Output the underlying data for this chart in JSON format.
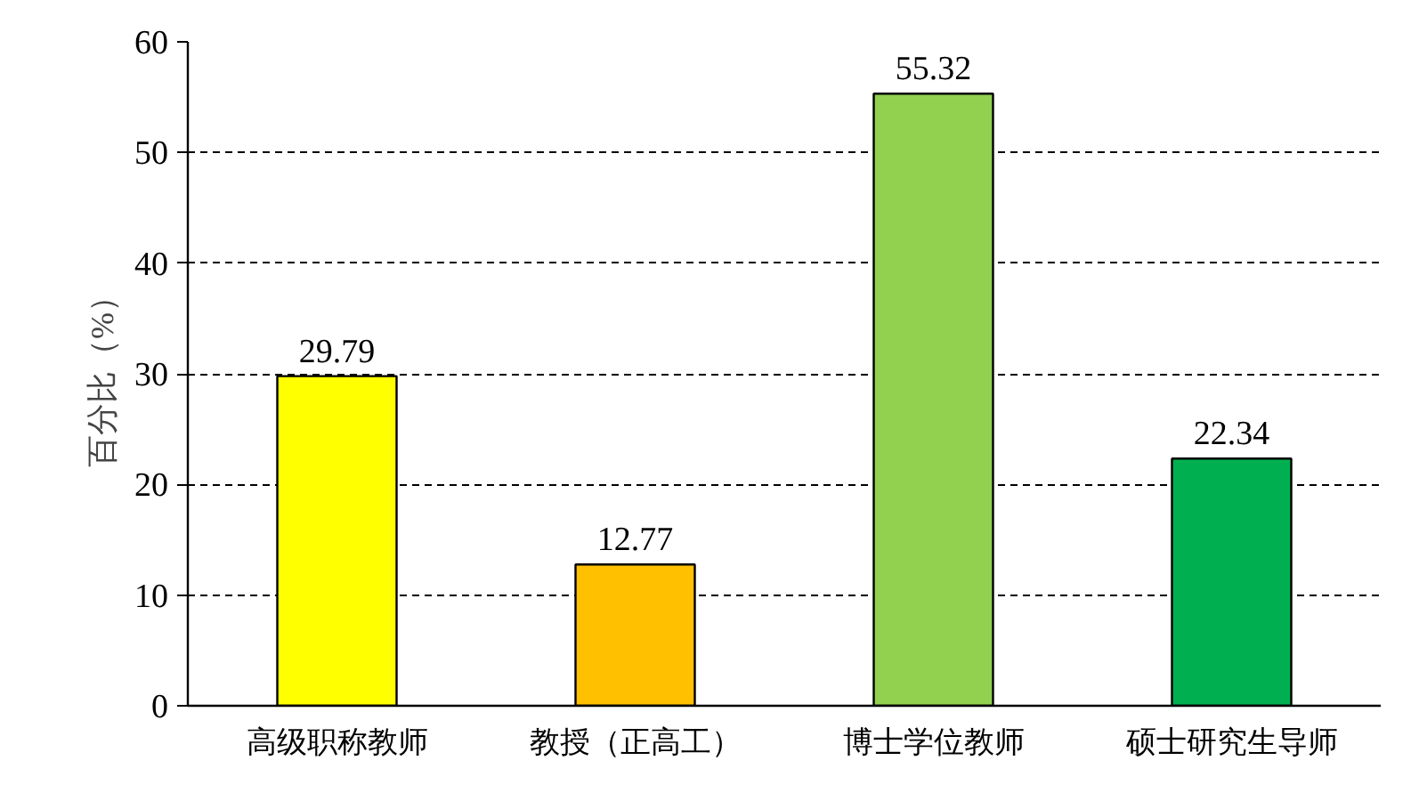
{
  "chart_data": {
    "type": "bar",
    "ylabel": "百分比（%）",
    "categories": [
      "高级职称教师",
      "教授（正高工）",
      "博士学位教师",
      "硕士研究生导师"
    ],
    "values": [
      29.79,
      12.77,
      55.32,
      22.34
    ],
    "colors": [
      "#ffff00",
      "#ffc000",
      "#92d050",
      "#00b050"
    ],
    "ylim": [
      0,
      60
    ],
    "yticks": [
      0,
      10,
      20,
      30,
      40,
      50,
      60
    ],
    "grid": "y",
    "data_labels": true
  }
}
